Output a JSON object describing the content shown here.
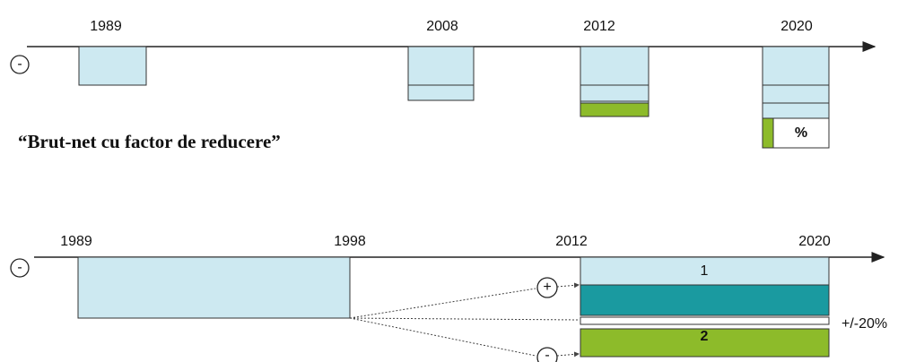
{
  "top": {
    "years": [
      "1989",
      "2008",
      "2012",
      "2020"
    ],
    "sign": "-",
    "caption": "“Brut-net cu factor de reducere”",
    "percent": "%"
  },
  "bottom": {
    "years": [
      "1989",
      "1998",
      "2012",
      "2020"
    ],
    "sign": "-",
    "plus": "+",
    "minus": "-",
    "bar1": "1",
    "bar2": "2",
    "range": "+/-20%"
  }
}
